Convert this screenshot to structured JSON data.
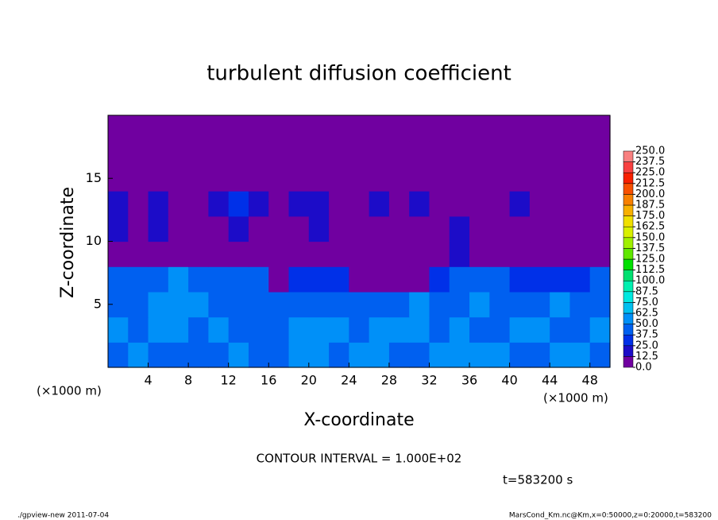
{
  "chart_data": {
    "type": "heatmap",
    "title": "turbulent diffusion coefficient",
    "xlabel": "X-coordinate",
    "ylabel": "Z-coordinate",
    "x_unit": "(×1000 m)",
    "y_unit": "(×1000 m)",
    "annotation": "CONTOUR INTERVAL = 1.000E+02",
    "time_label": "t=583200 s",
    "footer_left": "./gpview-new  2011-07-04",
    "footer_right": "MarsCond_Km.nc@Km,x=0:50000,z=0:20000,t=583200",
    "xlim": [
      0,
      50
    ],
    "ylim": [
      0,
      20
    ],
    "xticks": [
      4,
      8,
      12,
      16,
      20,
      24,
      28,
      32,
      36,
      40,
      44,
      48
    ],
    "yticks": [
      5,
      10,
      15
    ],
    "values": [
      [
        45,
        50,
        48,
        40,
        40,
        45,
        50,
        45,
        40,
        55,
        50,
        45,
        50,
        55,
        48,
        45,
        50,
        55,
        60,
        50,
        45,
        45,
        50,
        55,
        45
      ],
      [
        50,
        45,
        55,
        50,
        45,
        50,
        48,
        40,
        45,
        50,
        55,
        50,
        48,
        50,
        55,
        50,
        45,
        50,
        48,
        45,
        50,
        55,
        48,
        45,
        50
      ],
      [
        48,
        45,
        50,
        55,
        50,
        48,
        45,
        40,
        45,
        40,
        45,
        48,
        45,
        40,
        42,
        50,
        45,
        48,
        50,
        45,
        48,
        45,
        50,
        48,
        45
      ],
      [
        40,
        45,
        48,
        50,
        45,
        48,
        45,
        42,
        10,
        30,
        30,
        25,
        8,
        5,
        5,
        5,
        30,
        40,
        45,
        40,
        35,
        35,
        30,
        35,
        40
      ],
      [
        10,
        8,
        10,
        8,
        10,
        10,
        8,
        8,
        10,
        8,
        8,
        10,
        8,
        8,
        10,
        8,
        10,
        20,
        10,
        10,
        8,
        5,
        8,
        10,
        8
      ],
      [
        15,
        10,
        15,
        12,
        10,
        12,
        20,
        12,
        10,
        12,
        15,
        12,
        12,
        10,
        12,
        10,
        12,
        15,
        10,
        12,
        10,
        8,
        12,
        10,
        10
      ],
      [
        15,
        12,
        15,
        12,
        10,
        15,
        30,
        15,
        12,
        15,
        20,
        12,
        10,
        15,
        12,
        15,
        10,
        12,
        12,
        10,
        15,
        10,
        12,
        12,
        12
      ],
      [
        8,
        5,
        8,
        10,
        10,
        12,
        12,
        10,
        10,
        8,
        8,
        5,
        8,
        10,
        8,
        5,
        5,
        5,
        5,
        5,
        5,
        5,
        5,
        5,
        5
      ],
      [
        5,
        5,
        5,
        5,
        5,
        5,
        5,
        5,
        5,
        5,
        5,
        5,
        5,
        5,
        5,
        5,
        5,
        5,
        5,
        5,
        5,
        5,
        5,
        5,
        5
      ],
      [
        5,
        5,
        5,
        5,
        5,
        5,
        5,
        5,
        5,
        5,
        5,
        5,
        5,
        5,
        5,
        5,
        5,
        5,
        5,
        5,
        5,
        5,
        5,
        5,
        5
      ]
    ],
    "colorbar": {
      "ticks": [
        {
          "value": 0,
          "label": "0.0"
        },
        12.5,
        {
          "value": 25,
          "label": "25.0"
        },
        37.5,
        {
          "value": 50,
          "label": "50.0"
        },
        62.5,
        {
          "value": 75,
          "label": "75.0"
        },
        87.5,
        {
          "value": 100,
          "label": "100.0"
        },
        112.5,
        {
          "value": 125,
          "label": "125.0"
        },
        137.5,
        {
          "value": 150,
          "label": "150.0"
        },
        162.5,
        {
          "value": 175,
          "label": "175.0"
        },
        187.5,
        {
          "value": 200,
          "label": "200.0"
        },
        212.5,
        {
          "value": 225,
          "label": "225.0"
        },
        237.5,
        {
          "value": 250,
          "label": "250.0"
        }
      ],
      "colors": [
        "#7000a0",
        "#1c0cc8",
        "#0030e8",
        "#0060f0",
        "#0090f8",
        "#00c0f0",
        "#00e8e0",
        "#00f0b0",
        "#00e070",
        "#00e000",
        "#60e800",
        "#a0f000",
        "#d8f000",
        "#f0e000",
        "#f8b000",
        "#f88000",
        "#f85000",
        "#f82000",
        "#f84040",
        "#f88080"
      ]
    }
  }
}
